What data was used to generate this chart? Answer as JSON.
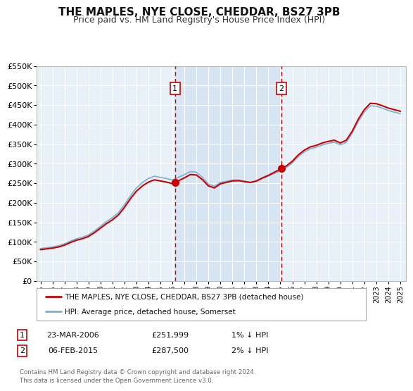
{
  "title": "THE MAPLES, NYE CLOSE, CHEDDAR, BS27 3PB",
  "subtitle": "Price paid vs. HM Land Registry's House Price Index (HPI)",
  "title_fontsize": 11,
  "subtitle_fontsize": 9,
  "bg_color": "#ffffff",
  "plot_bg_color": "#e8f0f8",
  "grid_color": "#ffffff",
  "ylim": [
    0,
    550000
  ],
  "yticks": [
    0,
    50000,
    100000,
    150000,
    200000,
    250000,
    300000,
    350000,
    400000,
    450000,
    500000,
    550000
  ],
  "ytick_labels": [
    "£0",
    "£50K",
    "£100K",
    "£150K",
    "£200K",
    "£250K",
    "£300K",
    "£350K",
    "£400K",
    "£450K",
    "£500K",
    "£550K"
  ],
  "xlim_start": 1994.7,
  "xlim_end": 2025.5,
  "xticks": [
    1995,
    1996,
    1997,
    1998,
    1999,
    2000,
    2001,
    2002,
    2003,
    2004,
    2005,
    2006,
    2007,
    2008,
    2009,
    2010,
    2011,
    2012,
    2013,
    2014,
    2015,
    2016,
    2017,
    2018,
    2019,
    2020,
    2021,
    2022,
    2023,
    2024,
    2025
  ],
  "sale1_x": 2006.22,
  "sale1_y": 251999,
  "sale1_label": "1",
  "sale2_x": 2015.09,
  "sale2_y": 287500,
  "sale2_label": "2",
  "legend_line1": "THE MAPLES, NYE CLOSE, CHEDDAR, BS27 3PB (detached house)",
  "legend_line2": "HPI: Average price, detached house, Somerset",
  "table_row1": [
    "1",
    "23-MAR-2006",
    "£251,999",
    "1% ↓ HPI"
  ],
  "table_row2": [
    "2",
    "06-FEB-2015",
    "£287,500",
    "2% ↓ HPI"
  ],
  "footer1": "Contains HM Land Registry data © Crown copyright and database right 2024.",
  "footer2": "This data is licensed under the Open Government Licence v3.0.",
  "red_color": "#cc0000",
  "blue_color": "#7ab0d4",
  "vline_color": "#cc0000",
  "shade_color": "#d0dff0",
  "hpi_years": [
    1995.0,
    1995.5,
    1996.0,
    1996.5,
    1997.0,
    1997.5,
    1998.0,
    1998.5,
    1999.0,
    1999.5,
    2000.0,
    2000.5,
    2001.0,
    2001.5,
    2002.0,
    2002.5,
    2003.0,
    2003.5,
    2004.0,
    2004.5,
    2005.0,
    2005.5,
    2006.0,
    2006.5,
    2007.0,
    2007.5,
    2008.0,
    2008.5,
    2009.0,
    2009.5,
    2010.0,
    2010.5,
    2011.0,
    2011.5,
    2012.0,
    2012.5,
    2013.0,
    2013.5,
    2014.0,
    2014.5,
    2015.0,
    2015.5,
    2016.0,
    2016.5,
    2017.0,
    2017.5,
    2018.0,
    2018.5,
    2019.0,
    2019.5,
    2020.0,
    2020.5,
    2021.0,
    2021.5,
    2022.0,
    2022.5,
    2023.0,
    2023.5,
    2024.0,
    2024.5,
    2025.0
  ],
  "hpi_vals": [
    83000,
    85000,
    87000,
    90000,
    95000,
    102000,
    108000,
    112000,
    118000,
    128000,
    140000,
    152000,
    162000,
    175000,
    195000,
    218000,
    238000,
    252000,
    262000,
    268000,
    265000,
    262000,
    258000,
    265000,
    272000,
    280000,
    278000,
    265000,
    248000,
    242000,
    252000,
    255000,
    258000,
    258000,
    255000,
    252000,
    255000,
    262000,
    268000,
    275000,
    282000,
    290000,
    302000,
    318000,
    330000,
    338000,
    342000,
    348000,
    352000,
    355000,
    348000,
    355000,
    378000,
    408000,
    432000,
    448000,
    447000,
    442000,
    436000,
    432000,
    428000
  ]
}
